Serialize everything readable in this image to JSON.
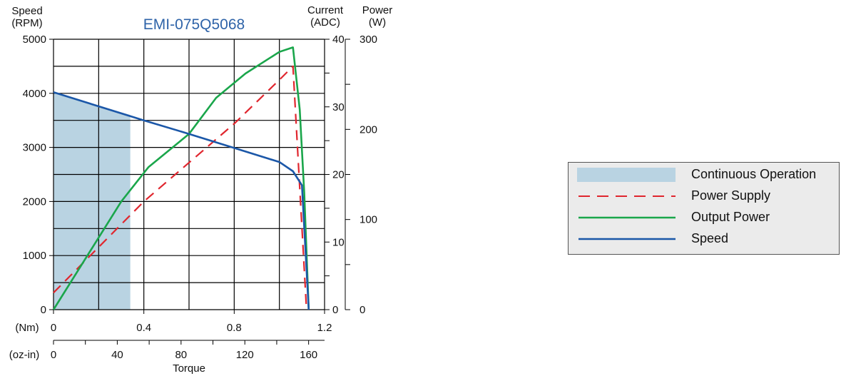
{
  "chart_data": {
    "type": "line",
    "title": "EMI-075Q5068",
    "xlabel": "Torque",
    "x_axis_primary": {
      "unit": "(Nm)",
      "range": [
        0,
        1.2
      ],
      "ticks": [
        "0",
        "0.4",
        "0.8",
        "1.2"
      ]
    },
    "x_axis_secondary": {
      "unit": "(oz-in)",
      "range": [
        0,
        170
      ],
      "ticks": [
        "0",
        "40",
        "80",
        "120",
        "160"
      ]
    },
    "y_axis_left": {
      "label": "Speed",
      "unit": "(RPM)",
      "range": [
        0,
        5000
      ],
      "ticks": [
        "0",
        "1000",
        "2000",
        "3000",
        "4000",
        "5000"
      ]
    },
    "y_axis_right_1": {
      "label": "Current",
      "unit": "(ADC)",
      "range": [
        0,
        40
      ],
      "ticks": [
        "0",
        "10",
        "20",
        "30",
        "40"
      ]
    },
    "y_axis_right_2": {
      "label": "Power",
      "unit": "(W)",
      "range": [
        0,
        300
      ],
      "ticks": [
        "0",
        "100",
        "200",
        "300"
      ]
    },
    "grid": true,
    "legend_position": "right",
    "continuous_operation": {
      "x_range": [
        0,
        0.34
      ],
      "speed_top": 3600
    },
    "series": [
      {
        "name": "Power Supply",
        "axis": "current",
        "color": "#e0262e",
        "dash": true,
        "x": [
          0,
          0.4,
          0.8,
          1.0,
          1.06,
          1.12
        ],
        "y": [
          2.5,
          16,
          27.5,
          34,
          36,
          0
        ]
      },
      {
        "name": "Output Power",
        "axis": "power",
        "color": "#1aa64b",
        "dash": false,
        "x": [
          0,
          0.15,
          0.3,
          0.42,
          0.6,
          0.72,
          0.85,
          1.0,
          1.06,
          1.09,
          1.11,
          1.13
        ],
        "y": [
          0,
          60,
          120,
          158,
          195,
          235,
          262,
          286,
          291,
          222,
          130,
          0
        ]
      },
      {
        "name": "Speed",
        "axis": "speed",
        "color": "#1b57a8",
        "dash": false,
        "x": [
          0,
          0.2,
          0.4,
          0.6,
          0.8,
          1.0,
          1.06,
          1.1,
          1.13
        ],
        "y": [
          4020,
          3760,
          3500,
          3250,
          2990,
          2730,
          2560,
          2300,
          0
        ]
      }
    ]
  },
  "legend": {
    "items": [
      {
        "label": "Continuous Operation",
        "type": "area",
        "color": "#b9d3e2"
      },
      {
        "label": "Power Supply",
        "type": "dashed",
        "color": "#e0262e"
      },
      {
        "label": "Output Power",
        "type": "line",
        "color": "#1aa64b"
      },
      {
        "label": "Speed",
        "type": "line",
        "color": "#1b57a8"
      }
    ]
  },
  "colors": {
    "title": "#2e63a8",
    "grid": "#000000",
    "area": "#b9d3e2"
  }
}
